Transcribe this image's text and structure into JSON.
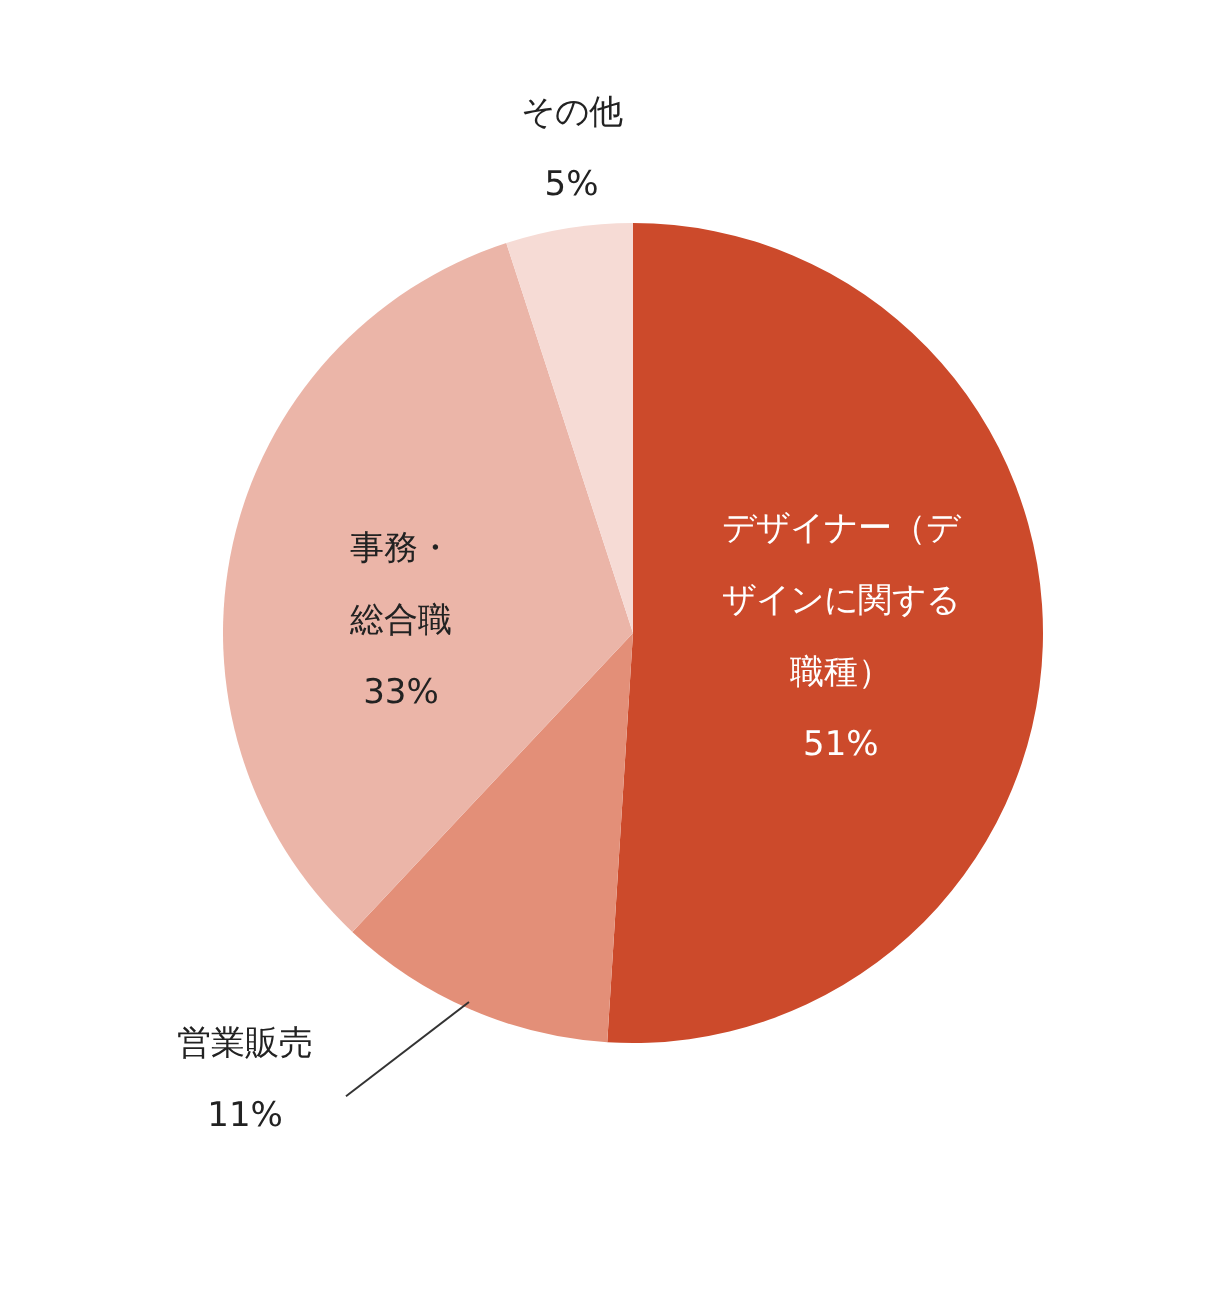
{
  "chart_data": {
    "type": "pie",
    "categories": [
      "デザイナー（デザインに関する職種）",
      "営業販売",
      "事務・総合職",
      "その他"
    ],
    "values": [
      51,
      11,
      33,
      5
    ],
    "colors": [
      "#cc4a2b",
      "#e38f78",
      "#ebb5a8",
      "#f6dbd5"
    ],
    "value_labels": [
      "51%",
      "11%",
      "33%",
      "5%"
    ]
  }
}
